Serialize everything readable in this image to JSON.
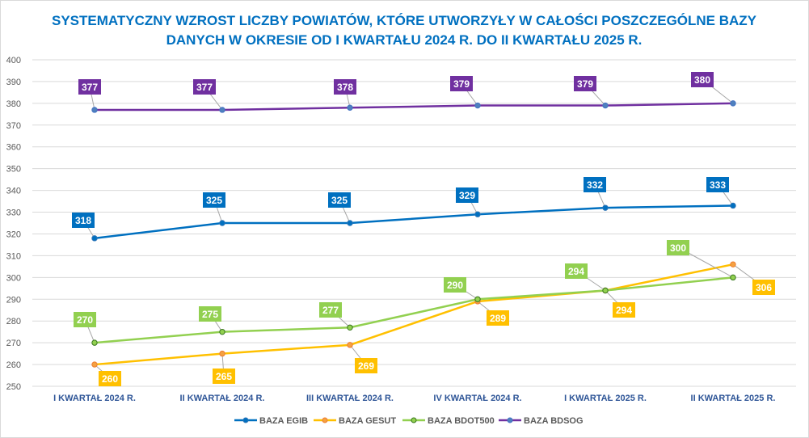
{
  "chart_data": {
    "type": "line",
    "title": "SYSTEMATYCZNY WZROST LICZBY POWIATÓW, KTÓRE UTWORZYŁY W CAŁOŚCI POSZCZEGÓLNE BAZY DANYCH W OKRESIE OD I KWARTAŁU 2024 R. DO II KWARTAŁU 2025 R.",
    "categories": [
      "I KWARTAŁ 2024 R.",
      "II KWARTAŁ 2024 R.",
      "III KWARTAŁ 2024 R.",
      "IV KWARTAŁ 2024 R.",
      "I KWARTAŁ 2025 R.",
      "II KWARTAŁ 2025 R."
    ],
    "ylim": [
      250,
      400
    ],
    "yticks": [
      250,
      260,
      270,
      280,
      290,
      300,
      310,
      320,
      330,
      340,
      350,
      360,
      370,
      380,
      390,
      400
    ],
    "grid": true,
    "legend": "bottom",
    "series": [
      {
        "name": "BAZA EGIB",
        "color": "#0070c0",
        "values": [
          318,
          325,
          325,
          329,
          332,
          333
        ]
      },
      {
        "name": "BAZA GESUT",
        "color": "#ffc000",
        "values": [
          260,
          265,
          269,
          289,
          294,
          306
        ]
      },
      {
        "name": "BAZA BDOT500",
        "color": "#92d050",
        "values": [
          270,
          275,
          277,
          290,
          294,
          300
        ]
      },
      {
        "name": "BAZA BDSOG",
        "color": "#7030a0",
        "values": [
          377,
          377,
          378,
          379,
          379,
          380
        ]
      }
    ]
  }
}
